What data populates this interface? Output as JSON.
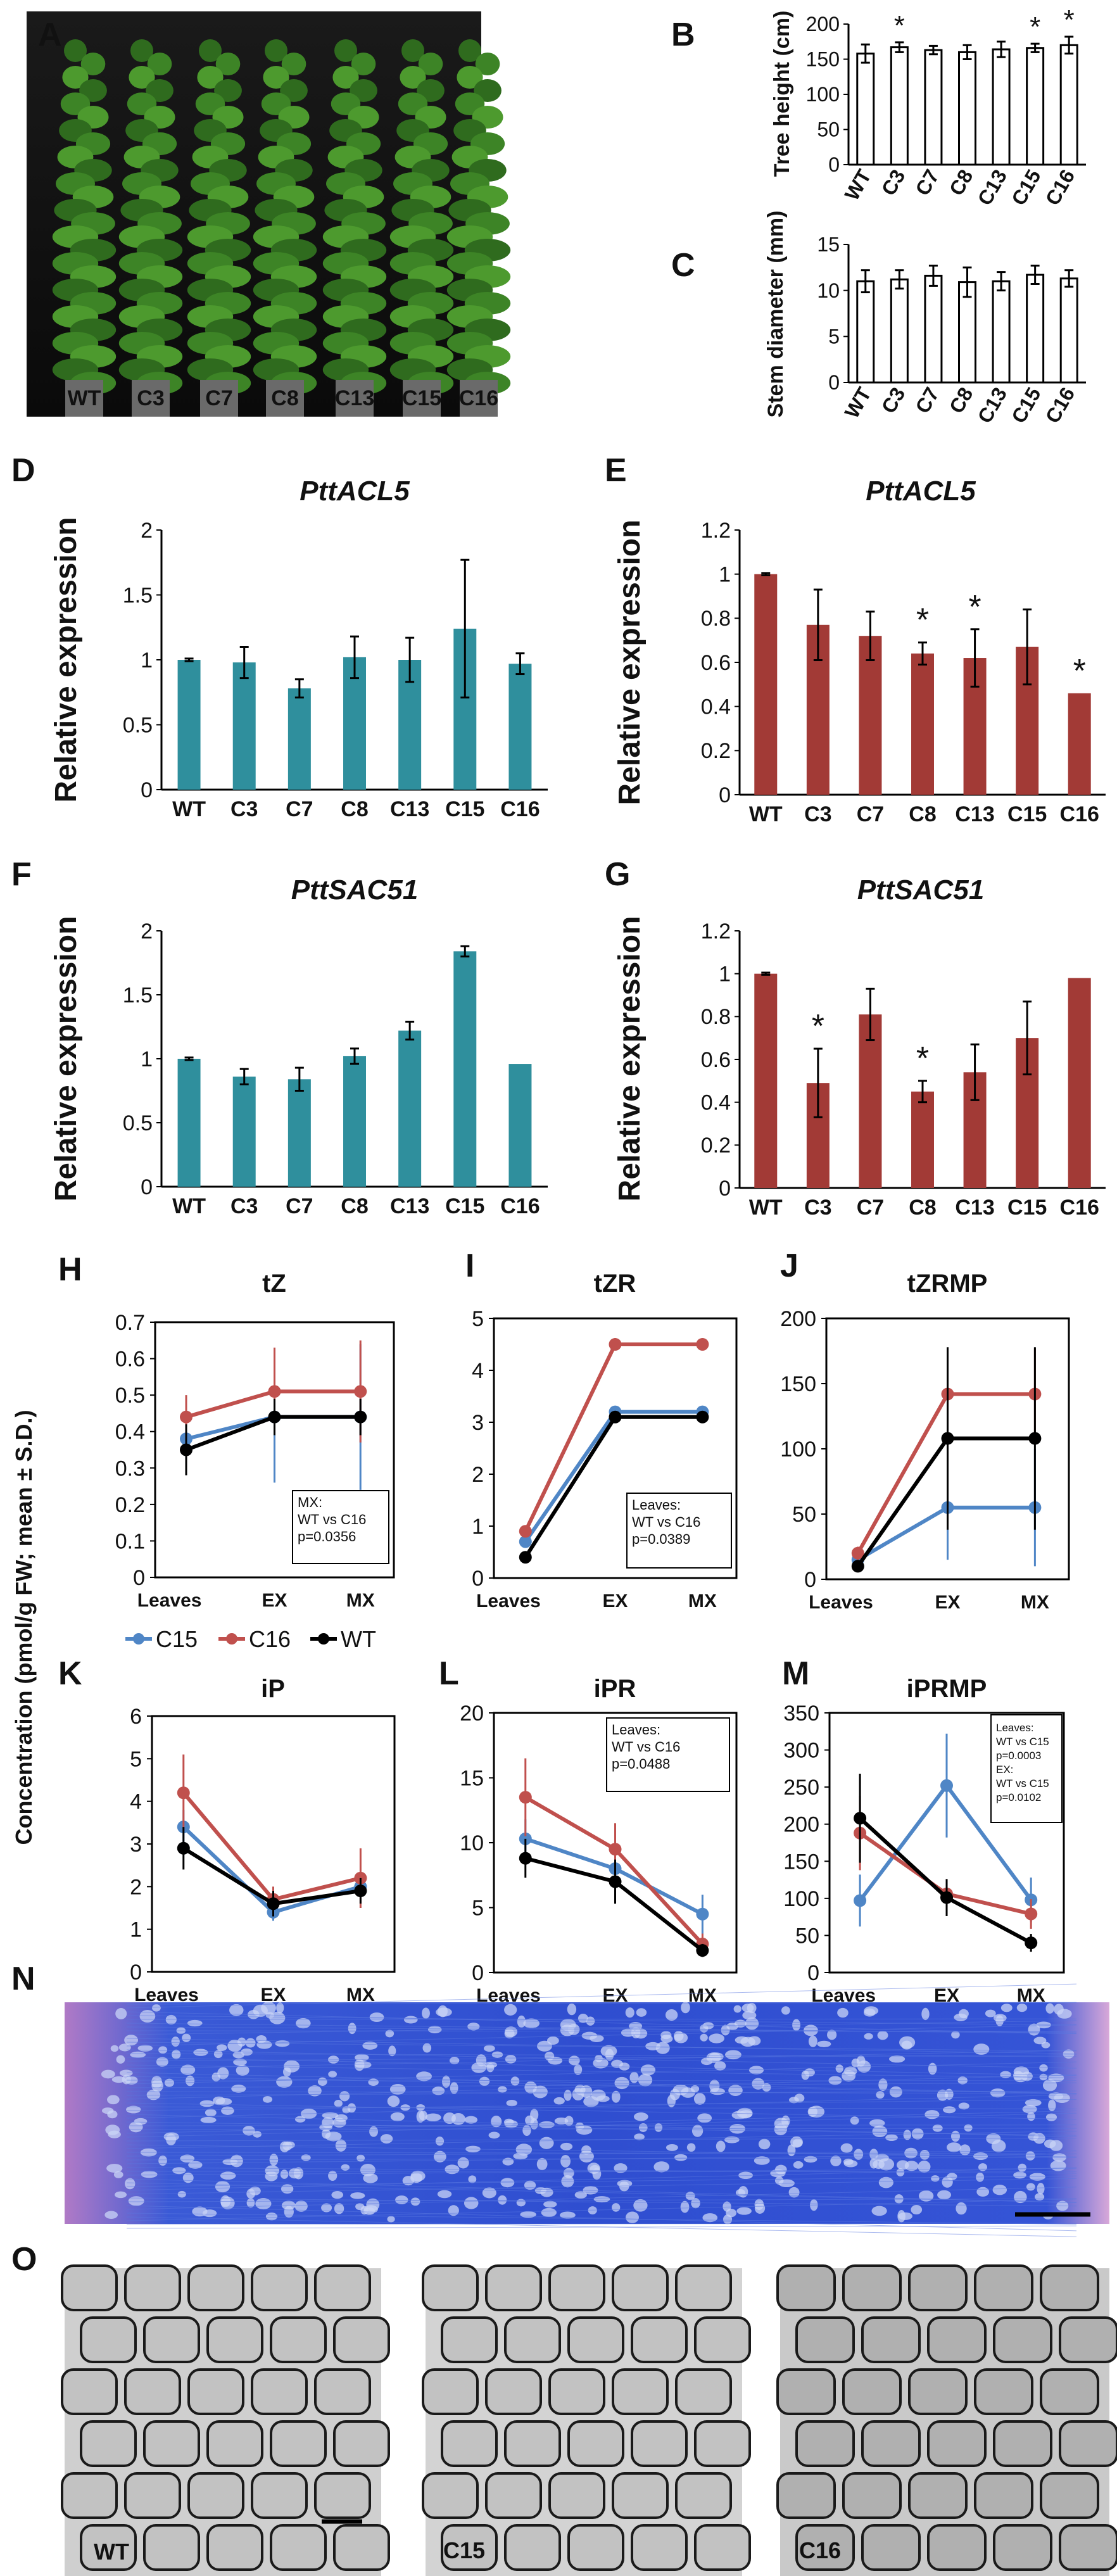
{
  "panel_letters": [
    "A",
    "B",
    "C",
    "D",
    "E",
    "F",
    "G",
    "H",
    "I",
    "J",
    "K",
    "L",
    "M",
    "N",
    "O"
  ],
  "colors": {
    "teal": "#2f8f9d",
    "red": "#a23a36",
    "c15": "#4f86c6",
    "c16": "#c0504d",
    "wt": "#000000"
  },
  "photoA": {
    "labels": [
      "WT",
      "C3",
      "C7",
      "C8",
      "C13",
      "C15",
      "C16"
    ]
  },
  "legend": {
    "c15": "C15",
    "c16": "C16",
    "wt": "WT"
  },
  "shared_ylabel": "Concentration (pmol/g FW; mean ± S.D.)",
  "micrographs": [
    {
      "label": "WT"
    },
    {
      "label": "C15"
    },
    {
      "label": "C16"
    }
  ],
  "chart_data": [
    {
      "id": "B",
      "type": "bar",
      "categories": [
        "WT",
        "C3",
        "C7",
        "C8",
        "C13",
        "C15",
        "C16"
      ],
      "values": [
        158,
        167,
        163,
        160,
        164,
        166,
        170
      ],
      "errors": [
        13,
        7,
        6,
        10,
        11,
        6,
        12
      ],
      "ylabel": "Tree height (cm)",
      "ylim": [
        0,
        200
      ],
      "yticks": [
        0,
        50,
        100,
        150,
        200
      ],
      "sig": [
        false,
        true,
        false,
        false,
        false,
        true,
        true
      ]
    },
    {
      "id": "C",
      "type": "bar",
      "categories": [
        "WT",
        "C3",
        "C7",
        "C8",
        "C13",
        "C15",
        "C16"
      ],
      "values": [
        11.0,
        11.2,
        11.6,
        10.9,
        11.0,
        11.7,
        11.3
      ],
      "errors": [
        1.2,
        1.0,
        1.1,
        1.6,
        1.0,
        1.0,
        0.9
      ],
      "ylabel": "Stem diameter (mm)",
      "ylim": [
        0,
        15
      ],
      "yticks": [
        0,
        5,
        10,
        15
      ],
      "sig": [
        false,
        false,
        false,
        false,
        false,
        false,
        false
      ]
    },
    {
      "id": "D",
      "type": "bar",
      "title": "PttACL5",
      "categories": [
        "WT",
        "C3",
        "C7",
        "C8",
        "C13",
        "C15",
        "C16"
      ],
      "values": [
        1.0,
        0.98,
        0.78,
        1.02,
        1.0,
        1.24,
        0.97
      ],
      "errors": [
        0.01,
        0.12,
        0.07,
        0.16,
        0.17,
        0.53,
        0.08
      ],
      "ylabel": "Relative expression",
      "ylim": [
        0,
        2
      ],
      "yticks": [
        0,
        0.5,
        1,
        1.5,
        2
      ],
      "sig": [
        false,
        false,
        false,
        false,
        false,
        false,
        false
      ]
    },
    {
      "id": "E",
      "type": "bar",
      "title": "PttACL5",
      "categories": [
        "WT",
        "C3",
        "C7",
        "C8",
        "C13",
        "C15",
        "C16"
      ],
      "values": [
        1.0,
        0.77,
        0.72,
        0.64,
        0.62,
        0.67,
        0.46
      ],
      "errors": [
        0.005,
        0.16,
        0.11,
        0.05,
        0.13,
        0.17,
        0
      ],
      "ylabel": "Relative expression",
      "ylim": [
        0,
        1.2
      ],
      "yticks": [
        0,
        0.2,
        0.4,
        0.6,
        0.8,
        1,
        1.2
      ],
      "sig": [
        false,
        false,
        false,
        true,
        true,
        false,
        true
      ]
    },
    {
      "id": "F",
      "type": "bar",
      "title": "PttSAC51",
      "categories": [
        "WT",
        "C3",
        "C7",
        "C8",
        "C13",
        "C15",
        "C16"
      ],
      "values": [
        1.0,
        0.86,
        0.84,
        1.02,
        1.22,
        1.84,
        0.96
      ],
      "errors": [
        0.01,
        0.06,
        0.09,
        0.06,
        0.07,
        0.04,
        0
      ],
      "ylabel": "Relative expression",
      "ylim": [
        0,
        2
      ],
      "yticks": [
        0,
        0.5,
        1,
        1.5,
        2
      ],
      "sig": [
        false,
        false,
        false,
        false,
        false,
        false,
        false
      ]
    },
    {
      "id": "G",
      "type": "bar",
      "title": "PttSAC51",
      "categories": [
        "WT",
        "C3",
        "C7",
        "C8",
        "C13",
        "C15",
        "C16"
      ],
      "values": [
        1.0,
        0.49,
        0.81,
        0.45,
        0.54,
        0.7,
        0.98
      ],
      "errors": [
        0.005,
        0.16,
        0.12,
        0.05,
        0.13,
        0.17,
        0
      ],
      "ylabel": "Relative expression",
      "ylim": [
        0,
        1.2
      ],
      "yticks": [
        0,
        0.2,
        0.4,
        0.6,
        0.8,
        1,
        1.2
      ],
      "sig": [
        false,
        true,
        false,
        true,
        false,
        false,
        false
      ]
    },
    {
      "id": "H",
      "type": "line",
      "title": "tZ",
      "x": [
        "Leaves",
        "EX",
        "MX"
      ],
      "ylim": [
        0,
        0.7
      ],
      "yticks": [
        0,
        0.1,
        0.2,
        0.3,
        0.4,
        0.5,
        0.6,
        0.7
      ],
      "series": [
        {
          "name": "C15",
          "values": [
            0.38,
            0.44,
            0.44
          ],
          "errors": [
            0.07,
            0.18,
            0.2
          ]
        },
        {
          "name": "C16",
          "values": [
            0.44,
            0.51,
            0.51
          ],
          "errors": [
            0.06,
            0.12,
            0.14
          ]
        },
        {
          "name": "WT",
          "values": [
            0.35,
            0.44,
            0.44
          ],
          "errors": [
            0.07,
            0.05,
            0.05
          ]
        }
      ],
      "annotation": [
        "MX:",
        "WT vs C16",
        "p=0.0356"
      ]
    },
    {
      "id": "I",
      "type": "line",
      "title": "tZR",
      "x": [
        "Leaves",
        "EX",
        "MX"
      ],
      "ylim": [
        0,
        5
      ],
      "yticks": [
        0,
        1,
        2,
        3,
        4,
        5
      ],
      "series": [
        {
          "name": "C15",
          "values": [
            0.7,
            3.2,
            3.2
          ],
          "errors": [
            0.1,
            0.1,
            0.1
          ]
        },
        {
          "name": "C16",
          "values": [
            0.9,
            4.5,
            4.5
          ],
          "errors": [
            0.1,
            0.12,
            0.12
          ]
        },
        {
          "name": "WT",
          "values": [
            0.4,
            3.1,
            3.1
          ],
          "errors": [
            0.05,
            0.1,
            0.1
          ]
        }
      ],
      "annotation": [
        "Leaves:",
        "WT vs C16",
        "p=0.0389"
      ]
    },
    {
      "id": "J",
      "type": "line",
      "title": "tZRMP",
      "x": [
        "Leaves",
        "EX",
        "MX"
      ],
      "ylim": [
        0,
        200
      ],
      "yticks": [
        0,
        50,
        100,
        150,
        200
      ],
      "series": [
        {
          "name": "C15",
          "values": [
            15,
            55,
            55
          ],
          "errors": [
            5,
            40,
            45
          ]
        },
        {
          "name": "C16",
          "values": [
            20,
            142,
            142
          ],
          "errors": [
            5,
            35,
            35
          ]
        },
        {
          "name": "WT",
          "values": [
            10,
            108,
            108
          ],
          "errors": [
            3,
            70,
            70
          ]
        }
      ]
    },
    {
      "id": "K",
      "type": "line",
      "title": "iP",
      "x": [
        "Leaves",
        "EX",
        "MX"
      ],
      "ylim": [
        0,
        6
      ],
      "yticks": [
        0,
        1,
        2,
        3,
        4,
        5,
        6
      ],
      "series": [
        {
          "name": "C15",
          "values": [
            3.4,
            1.4,
            2.0
          ],
          "errors": [
            0.4,
            0.2,
            0.2
          ]
        },
        {
          "name": "C16",
          "values": [
            4.2,
            1.7,
            2.2
          ],
          "errors": [
            0.9,
            0.3,
            0.7
          ]
        },
        {
          "name": "WT",
          "values": [
            2.9,
            1.6,
            1.9
          ],
          "errors": [
            0.5,
            0.3,
            0.3
          ]
        }
      ]
    },
    {
      "id": "L",
      "type": "line",
      "title": "iPR",
      "x": [
        "Leaves",
        "EX",
        "MX"
      ],
      "ylim": [
        0,
        20
      ],
      "yticks": [
        0,
        5,
        10,
        15,
        20
      ],
      "series": [
        {
          "name": "C15",
          "values": [
            10.3,
            8.0,
            4.5
          ],
          "errors": [
            1.5,
            1.5,
            1.5
          ]
        },
        {
          "name": "C16",
          "values": [
            13.5,
            9.5,
            2.2
          ],
          "errors": [
            3.0,
            2.0,
            0.8
          ]
        },
        {
          "name": "WT",
          "values": [
            8.8,
            7.0,
            1.7
          ],
          "errors": [
            1.5,
            1.7,
            0.5
          ]
        }
      ],
      "annotation": [
        "Leaves:",
        "WT vs C16",
        "p=0.0488"
      ]
    },
    {
      "id": "M",
      "type": "line",
      "title": "iPRMP",
      "x": [
        "Leaves",
        "EX",
        "MX"
      ],
      "ylim": [
        0,
        350
      ],
      "yticks": [
        0,
        50,
        100,
        150,
        200,
        250,
        300,
        350
      ],
      "series": [
        {
          "name": "C15",
          "values": [
            97,
            252,
            98
          ],
          "errors": [
            35,
            70,
            30
          ]
        },
        {
          "name": "C16",
          "values": [
            188,
            106,
            79
          ],
          "errors": [
            50,
            20,
            20
          ]
        },
        {
          "name": "WT",
          "values": [
            208,
            101,
            40
          ],
          "errors": [
            60,
            25,
            12
          ]
        }
      ],
      "annotation": [
        "Leaves:",
        "WT vs C15",
        "p=0.0003",
        "EX:",
        "WT vs C15",
        "p=0.0102"
      ]
    }
  ]
}
